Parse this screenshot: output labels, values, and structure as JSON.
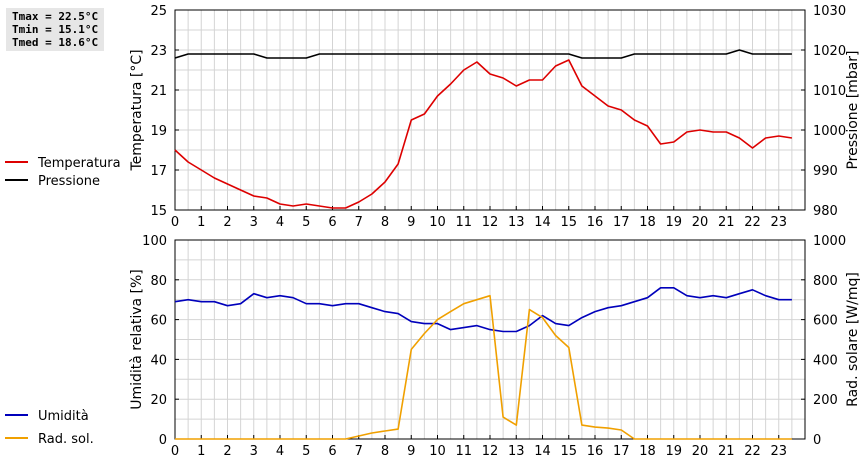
{
  "stats": {
    "tmax": "Tmax = 22.5°C",
    "tmin": "Tmin = 15.1°C",
    "tmed": "Tmed = 18.6°C"
  },
  "chart_data": [
    {
      "type": "line",
      "xlim": [
        0,
        24
      ],
      "x_ticks": [
        0,
        1,
        2,
        3,
        4,
        5,
        6,
        7,
        8,
        9,
        10,
        11,
        12,
        13,
        14,
        15,
        16,
        17,
        18,
        19,
        20,
        21,
        22,
        23
      ],
      "ylabel": "Temperatura [°C]",
      "ylim": [
        15,
        25
      ],
      "y_ticks": [
        15,
        17,
        19,
        21,
        23,
        25
      ],
      "y2label": "Pressione [mbar]",
      "y2lim": [
        980,
        1030
      ],
      "y2_ticks": [
        980,
        990,
        1000,
        1010,
        1020,
        1030
      ],
      "grid": true,
      "legend_position": "left",
      "series": [
        {
          "name": "Temperatura",
          "axis": "left",
          "color": "#dd0000",
          "x": [
            0,
            0.5,
            1,
            1.5,
            2,
            2.5,
            3,
            3.5,
            4,
            4.5,
            5,
            5.5,
            6,
            6.5,
            7,
            7.5,
            8,
            8.5,
            9,
            9.5,
            10,
            10.5,
            11,
            11.5,
            12,
            12.5,
            13,
            13.5,
            14,
            14.5,
            15,
            15.5,
            16,
            16.5,
            17,
            17.5,
            18,
            18.5,
            19,
            19.5,
            20,
            20.5,
            21,
            21.5,
            22,
            22.5,
            23,
            23.5
          ],
          "values": [
            18.0,
            17.4,
            17.0,
            16.6,
            16.3,
            16.0,
            15.7,
            15.6,
            15.3,
            15.2,
            15.3,
            15.2,
            15.1,
            15.1,
            15.4,
            15.8,
            16.4,
            17.3,
            19.5,
            19.8,
            20.7,
            21.3,
            22.0,
            22.4,
            21.8,
            21.6,
            21.2,
            21.5,
            21.5,
            22.2,
            22.5,
            21.2,
            20.7,
            20.2,
            20.0,
            19.5,
            19.2,
            18.3,
            18.4,
            18.9,
            19.0,
            18.9,
            18.9,
            18.6,
            18.1,
            18.6,
            18.7,
            18.6
          ]
        },
        {
          "name": "Pressione",
          "axis": "right",
          "color": "#000000",
          "x": [
            0,
            0.5,
            1,
            1.5,
            2,
            2.5,
            3,
            3.5,
            4,
            4.5,
            5,
            5.5,
            6,
            6.5,
            7,
            7.5,
            8,
            8.5,
            9,
            9.5,
            10,
            10.5,
            11,
            11.5,
            12,
            12.5,
            13,
            13.5,
            14,
            14.5,
            15,
            15.5,
            16,
            16.5,
            17,
            17.5,
            18,
            18.5,
            19,
            19.5,
            20,
            20.5,
            21,
            21.5,
            22,
            22.5,
            23,
            23.5
          ],
          "values": [
            1018,
            1019,
            1019,
            1019,
            1019,
            1019,
            1019,
            1018,
            1018,
            1018,
            1018,
            1019,
            1019,
            1019,
            1019,
            1019,
            1019,
            1019,
            1019,
            1019,
            1019,
            1019,
            1019,
            1019,
            1019,
            1019,
            1019,
            1019,
            1019,
            1019,
            1019,
            1018,
            1018,
            1018,
            1018,
            1019,
            1019,
            1019,
            1019,
            1019,
            1019,
            1019,
            1019,
            1020,
            1019,
            1019,
            1019,
            1019
          ]
        }
      ]
    },
    {
      "type": "line",
      "xlim": [
        0,
        24
      ],
      "x_ticks": [
        0,
        1,
        2,
        3,
        4,
        5,
        6,
        7,
        8,
        9,
        10,
        11,
        12,
        13,
        14,
        15,
        16,
        17,
        18,
        19,
        20,
        21,
        22,
        23
      ],
      "ylabel": "Umidità relativa [%]",
      "ylim": [
        0,
        100
      ],
      "y_ticks": [
        0,
        20,
        40,
        60,
        80,
        100
      ],
      "y2label": "Rad. solare [W/mq]",
      "y2lim": [
        0,
        1000
      ],
      "y2_ticks": [
        0,
        200,
        400,
        600,
        800,
        1000
      ],
      "grid": true,
      "legend_position": "left",
      "series": [
        {
          "name": "Umidità",
          "axis": "left",
          "color": "#0000bb",
          "x": [
            0,
            0.5,
            1,
            1.5,
            2,
            2.5,
            3,
            3.5,
            4,
            4.5,
            5,
            5.5,
            6,
            6.5,
            7,
            7.5,
            8,
            8.5,
            9,
            9.5,
            10,
            10.5,
            11,
            11.5,
            12,
            12.5,
            13,
            13.5,
            14,
            14.5,
            15,
            15.5,
            16,
            16.5,
            17,
            17.5,
            18,
            18.5,
            19,
            19.5,
            20,
            20.5,
            21,
            21.5,
            22,
            22.5,
            23,
            23.5
          ],
          "values": [
            69,
            70,
            69,
            69,
            67,
            68,
            73,
            71,
            72,
            71,
            68,
            68,
            67,
            68,
            68,
            66,
            64,
            63,
            59,
            58,
            58,
            55,
            56,
            57,
            55,
            54,
            54,
            57,
            62,
            58,
            57,
            61,
            64,
            66,
            67,
            69,
            71,
            76,
            76,
            72,
            71,
            72,
            71,
            73,
            75,
            72,
            70,
            70
          ]
        },
        {
          "name": "Rad. sol.",
          "axis": "right",
          "color": "#f0a000",
          "x": [
            0,
            1,
            2,
            3,
            4,
            5,
            6,
            6.5,
            7,
            7.5,
            8,
            8.5,
            9,
            9.5,
            10,
            10.5,
            11,
            11.5,
            12,
            12.5,
            13,
            13.5,
            14,
            14.5,
            15,
            15.5,
            16,
            16.5,
            17,
            17.5,
            18,
            19,
            20,
            21,
            22,
            23,
            23.5
          ],
          "values": [
            0,
            0,
            0,
            0,
            0,
            0,
            0,
            0,
            15,
            30,
            40,
            50,
            450,
            530,
            600,
            640,
            680,
            700,
            720,
            110,
            70,
            650,
            610,
            520,
            460,
            70,
            60,
            55,
            45,
            0,
            0,
            0,
            0,
            0,
            0,
            0,
            0
          ]
        }
      ]
    }
  ]
}
